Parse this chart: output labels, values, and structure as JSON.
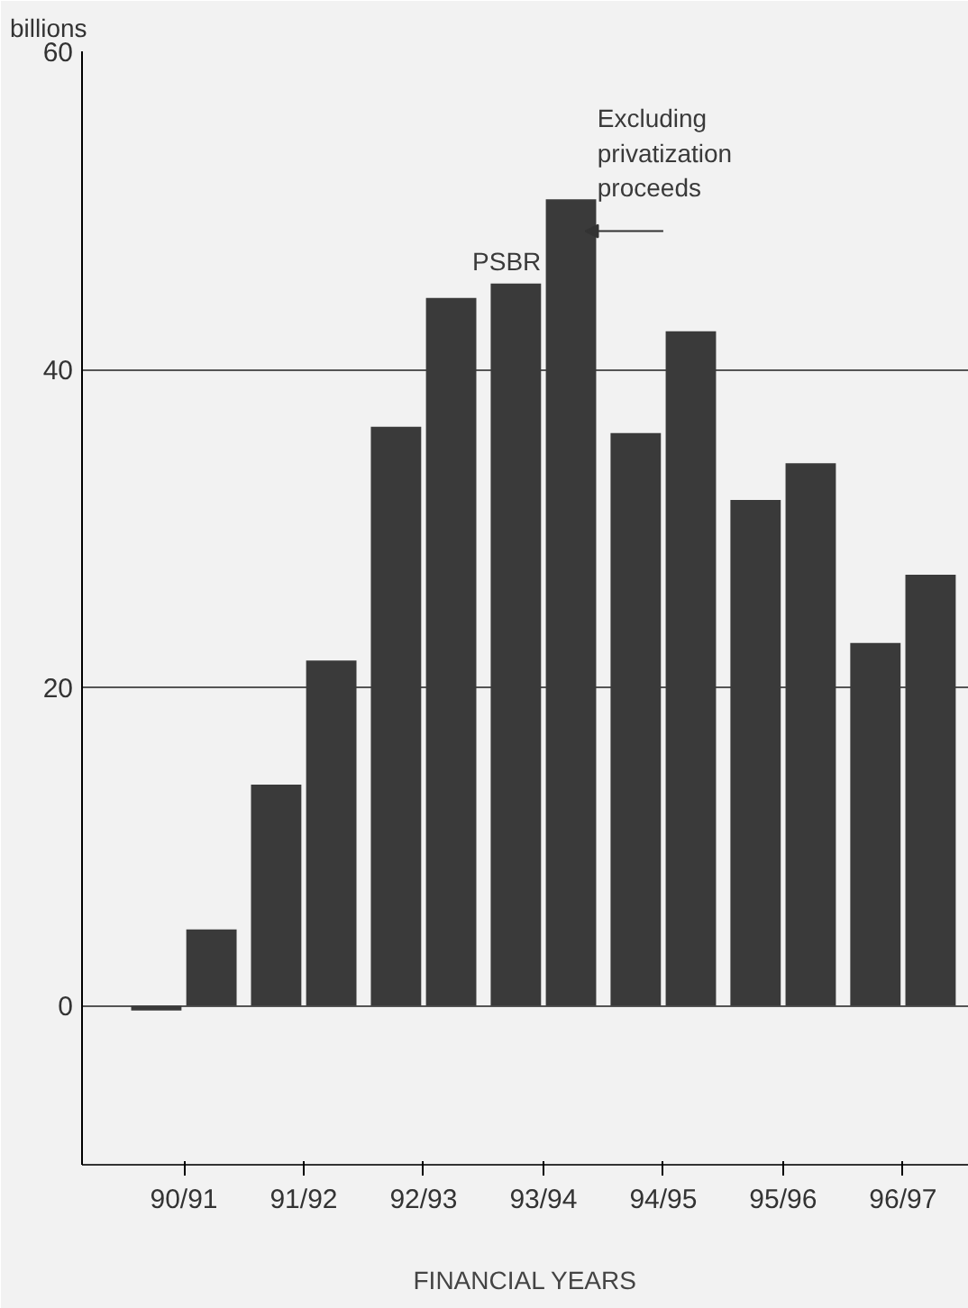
{
  "chart_data": {
    "type": "bar",
    "ylabel": "billions",
    "xlabel": "FINANCIAL YEARS",
    "categories": [
      "90/91",
      "91/92",
      "92/93",
      "93/94",
      "94/95",
      "95/96",
      "96/97"
    ],
    "series": [
      {
        "name": "PSBR",
        "color": "#3a3a3a",
        "values": [
          -0.3,
          13.9,
          36.4,
          45.4,
          36.0,
          31.8,
          22.8
        ]
      },
      {
        "name": "Excluding privatization proceeds",
        "color": "#3a3a3a",
        "values": [
          4.8,
          21.7,
          44.5,
          50.7,
          42.4,
          34.1,
          27.1
        ]
      }
    ],
    "ylim": [
      -10,
      60
    ],
    "yticks": [
      0,
      20,
      40,
      60
    ],
    "grid": "y"
  }
}
